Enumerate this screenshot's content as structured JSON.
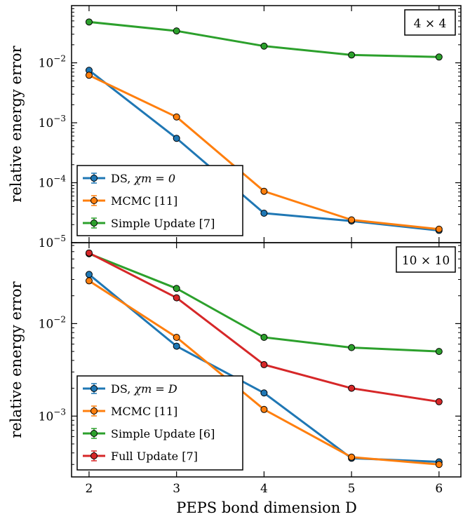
{
  "chart_data": [
    {
      "type": "line",
      "yscale": "log",
      "ylabel": "relative energy error",
      "xlabel": "",
      "annotation": "4 × 4",
      "x": [
        2,
        3,
        4,
        5,
        6
      ],
      "xlim": [
        1.8,
        6.25
      ],
      "ylim": [
        1e-05,
        0.09
      ],
      "y_ticks": [
        {
          "value": 0.01,
          "base": "10",
          "exp": "−2"
        },
        {
          "value": 0.001,
          "base": "10",
          "exp": "−3"
        },
        {
          "value": 0.0001,
          "base": "10",
          "exp": "−4"
        },
        {
          "value": 1e-05,
          "base": "10",
          "exp": "−5"
        }
      ],
      "legend_position": "lower-left",
      "series": [
        {
          "name": "DS, ",
          "math_label": "χm = 0",
          "color": "#1f77b4",
          "values": [
            0.0075,
            0.00055,
            3.1e-05,
            2.3e-05,
            1.6e-05
          ]
        },
        {
          "name": "MCMC [11]",
          "color": "#ff7f0e",
          "values": [
            0.0062,
            0.00125,
            7.2e-05,
            2.4e-05,
            1.68e-05
          ]
        },
        {
          "name": "Simple Update [7]",
          "color": "#2ca02c",
          "values": [
            0.048,
            0.034,
            0.019,
            0.0135,
            0.0125
          ]
        }
      ]
    },
    {
      "type": "line",
      "yscale": "log",
      "ylabel": "relative energy error",
      "xlabel": "PEPS bond dimension D",
      "annotation": "10 × 10",
      "x": [
        2,
        3,
        4,
        5,
        6
      ],
      "xlim": [
        1.8,
        6.25
      ],
      "ylim": [
        0.00022,
        0.075
      ],
      "y_ticks": [
        {
          "value": 0.01,
          "base": "10",
          "exp": "−2"
        },
        {
          "value": 0.001,
          "base": "10",
          "exp": "−3"
        }
      ],
      "x_tick_labels": [
        "2",
        "3",
        "4",
        "5",
        "6"
      ],
      "legend_position": "lower-left",
      "series": [
        {
          "name": "DS, ",
          "math_label": "χm = D",
          "color": "#1f77b4",
          "values": [
            0.034,
            0.0057,
            0.00178,
            0.00035,
            0.00032
          ]
        },
        {
          "name": "MCMC [11]",
          "color": "#ff7f0e",
          "values": [
            0.029,
            0.0071,
            0.00118,
            0.00036,
            0.0003
          ]
        },
        {
          "name": "Simple Update [6]",
          "color": "#2ca02c",
          "values": [
            0.057,
            0.024,
            0.0071,
            0.0055,
            0.005
          ]
        },
        {
          "name": "Full Update [7]",
          "color": "#d62728",
          "values": [
            0.058,
            0.019,
            0.0036,
            0.002,
            0.00143
          ]
        }
      ]
    }
  ]
}
